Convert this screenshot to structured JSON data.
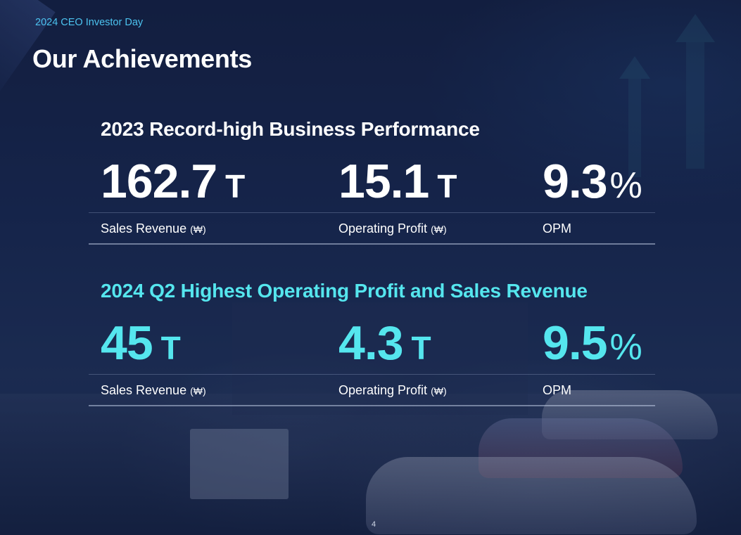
{
  "header": {
    "event": "2024 CEO Investor Day",
    "title": "Our Achievements"
  },
  "sections": [
    {
      "heading": "2023 Record-high Business Performance",
      "metrics": [
        {
          "value": "162.7",
          "unit": "T",
          "label": "Sales Revenue",
          "currency": "(₩)"
        },
        {
          "value": "15.1",
          "unit": "T",
          "label": "Operating Profit",
          "currency": "(₩)"
        },
        {
          "value": "9.3",
          "unit": "%",
          "label": "OPM",
          "currency": ""
        }
      ]
    },
    {
      "heading": "2024 Q2 Highest Operating Profit and Sales Revenue",
      "metrics": [
        {
          "value": "45",
          "unit": "T",
          "label": "Sales Revenue",
          "currency": "(₩)"
        },
        {
          "value": "4.3",
          "unit": "T",
          "label": "Operating Profit",
          "currency": "(₩)"
        },
        {
          "value": "9.5",
          "unit": "%",
          "label": "OPM",
          "currency": ""
        }
      ]
    }
  ],
  "footer": {
    "page_number": "4"
  },
  "colors": {
    "accent_cyan": "#55e6ee",
    "event_blue": "#4cc3f0",
    "background": "#14244a"
  }
}
